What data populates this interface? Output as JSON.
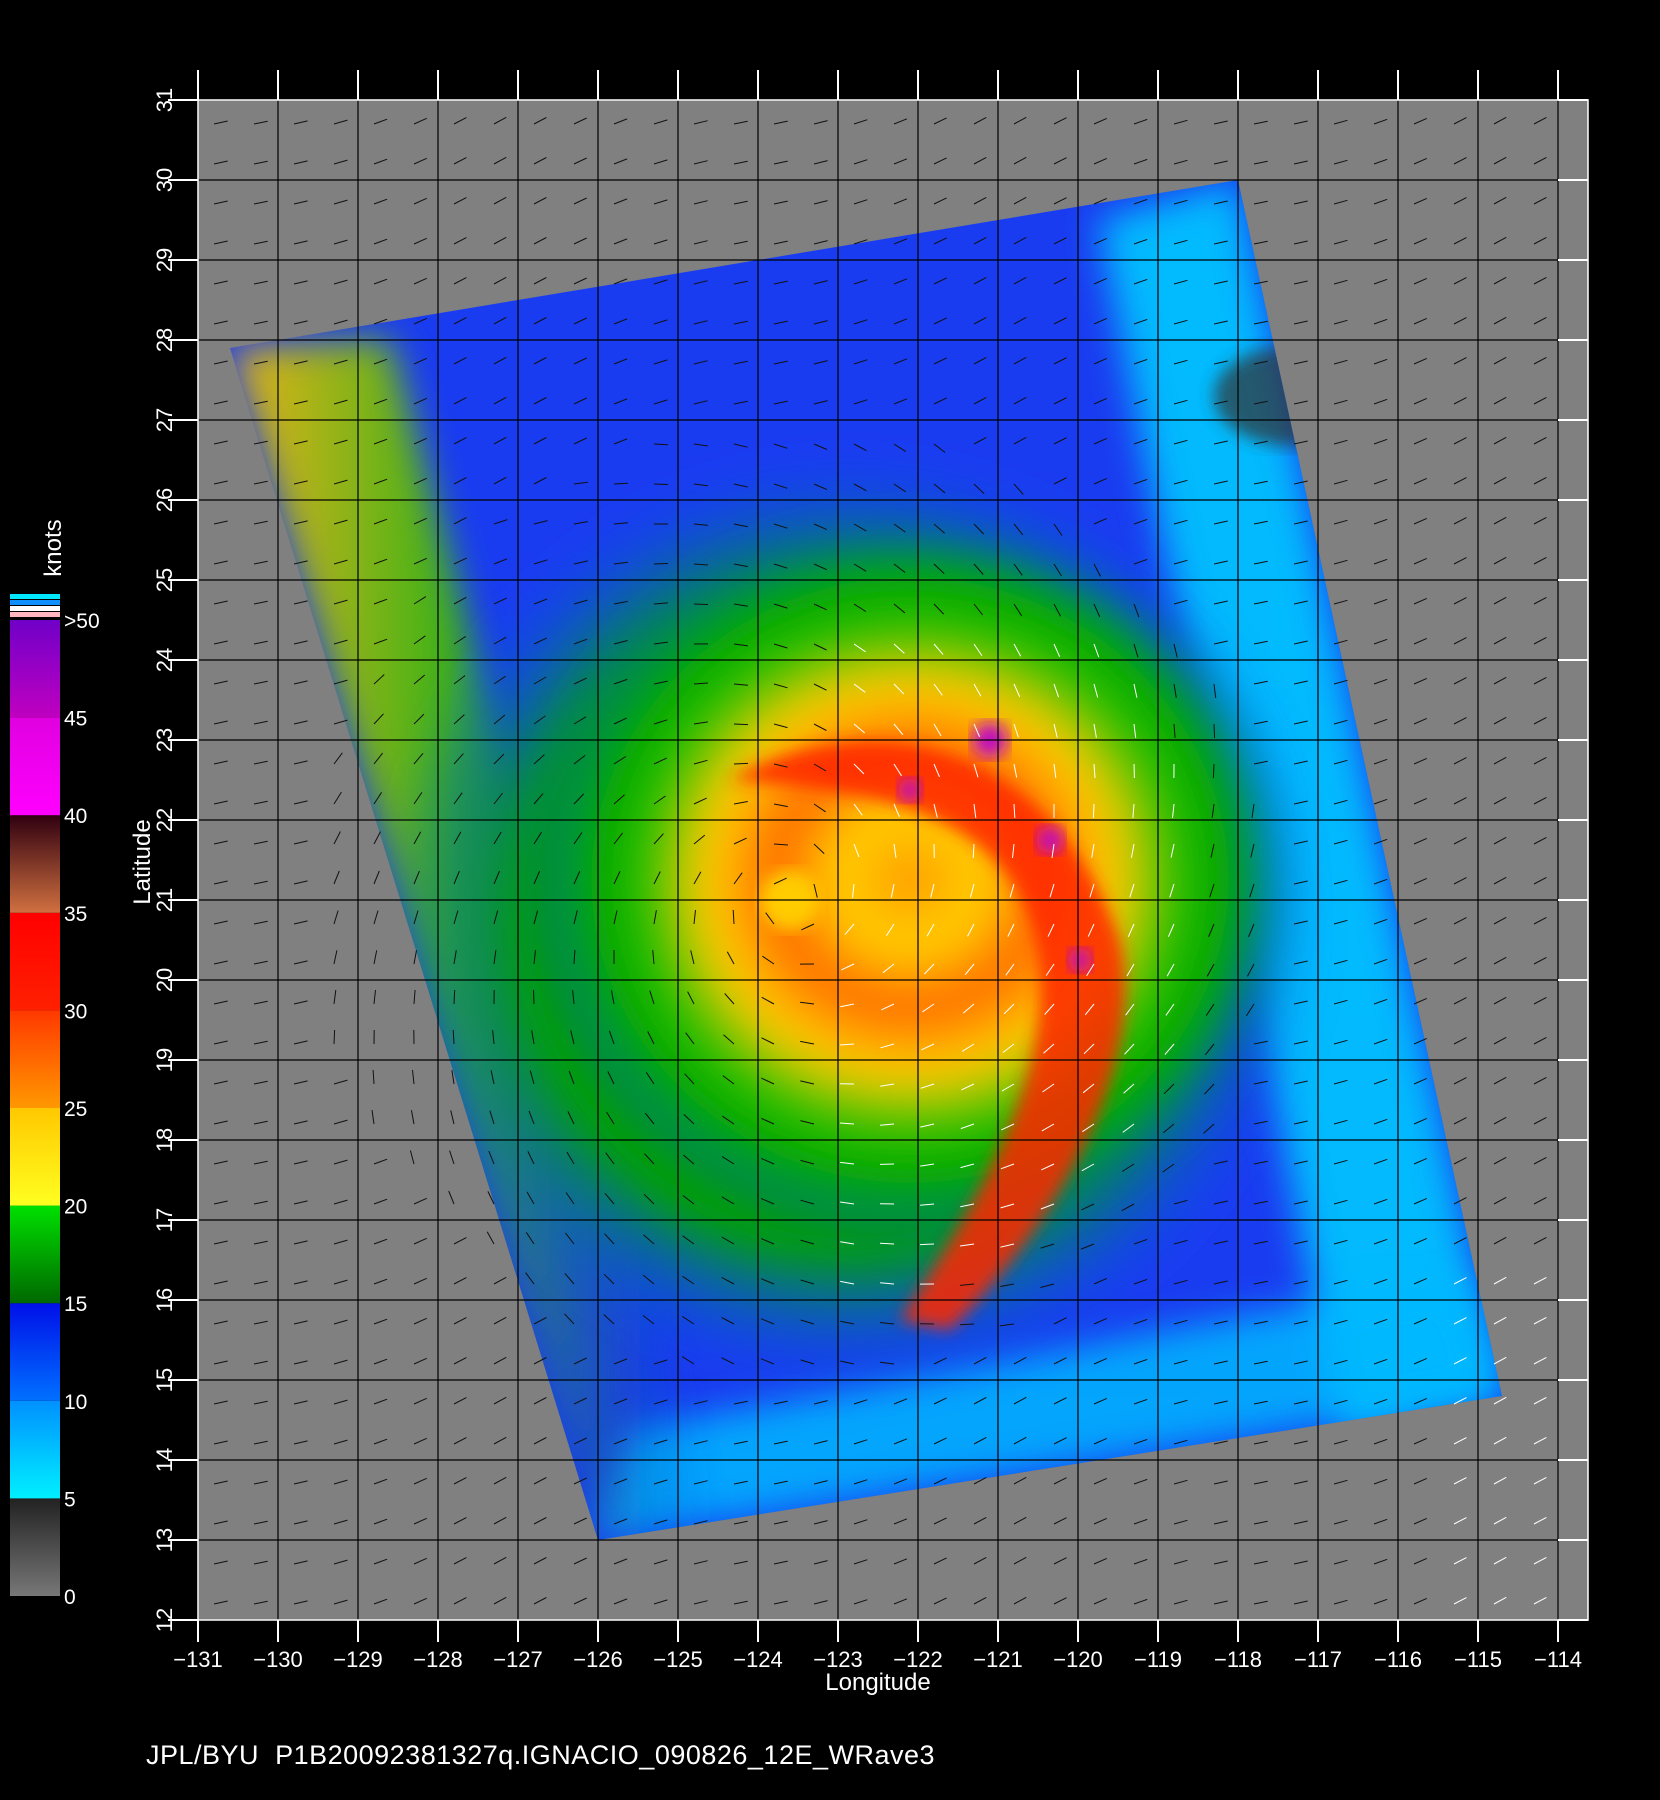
{
  "footer": {
    "source": "JPL/BYU",
    "product": "P1B20092381327q.IGNACIO_090826_12E_WRave3"
  },
  "axes": {
    "xlabel": "Longitude",
    "ylabel": "Latitude",
    "xlim": [
      -131,
      -114
    ],
    "ylim": [
      12,
      31
    ],
    "xticks": [
      "-131",
      "-130",
      "-129",
      "-128",
      "-127",
      "-126",
      "-125",
      "-124",
      "-123",
      "-122",
      "-121",
      "-120",
      "-119",
      "-118",
      "-117",
      "-116",
      "-115",
      "-114"
    ],
    "yticks": [
      "12",
      "13",
      "14",
      "15",
      "16",
      "17",
      "18",
      "19",
      "20",
      "21",
      "22",
      "23",
      "24",
      "25",
      "26",
      "27",
      "28",
      "29",
      "30",
      "31"
    ]
  },
  "colorbar": {
    "unit": "knots",
    "labels": [
      "0",
      "5",
      "10",
      "15",
      "20",
      "25",
      "30",
      "35",
      "40",
      "45",
      ">50"
    ],
    "bands": [
      {
        "from": 0,
        "to": 5,
        "colors": [
          "#777777",
          "#222222"
        ]
      },
      {
        "from": 5,
        "to": 10,
        "colors": [
          "#00f0ff",
          "#0090ff"
        ]
      },
      {
        "from": 10,
        "to": 15,
        "colors": [
          "#0070ff",
          "#0010e8"
        ]
      },
      {
        "from": 15,
        "to": 20,
        "colors": [
          "#006800",
          "#00e000"
        ]
      },
      {
        "from": 20,
        "to": 25,
        "colors": [
          "#ffff20",
          "#ffc800"
        ]
      },
      {
        "from": 25,
        "to": 30,
        "colors": [
          "#ff9800",
          "#ff3800"
        ]
      },
      {
        "from": 30,
        "to": 35,
        "colors": [
          "#ff2000",
          "#ff0000"
        ]
      },
      {
        "from": 35,
        "to": 40,
        "colors": [
          "#d07040",
          "#300010"
        ]
      },
      {
        "from": 40,
        "to": 45,
        "colors": [
          "#ff00ff",
          "#e000e0"
        ]
      },
      {
        "from": 45,
        "to": 50,
        "colors": [
          "#c000c0",
          "#7000c8"
        ]
      }
    ]
  },
  "map": {
    "land_color": "#808080",
    "swath_corners_lonlat": [
      [
        -130.6,
        27.9
      ],
      [
        -118.0,
        30.0
      ],
      [
        -114.7,
        14.8
      ],
      [
        -126.0,
        13.0
      ]
    ],
    "storm_center_lonlat": [
      -123.6,
      21.0
    ]
  }
}
